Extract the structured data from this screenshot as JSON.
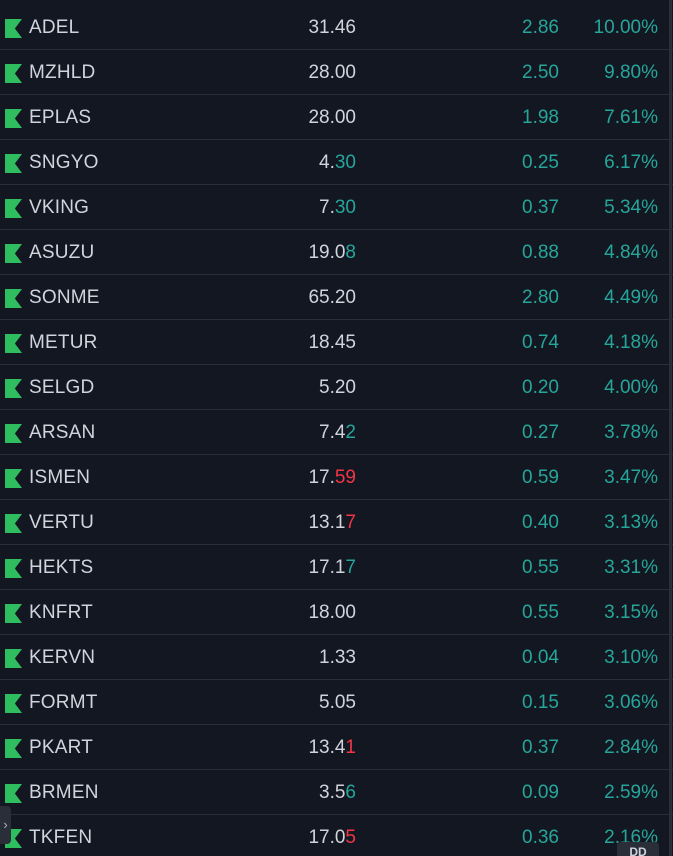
{
  "watchlist": {
    "rows": [
      {
        "symbol": "ADEL",
        "last_main": "31.46",
        "last_hl": "",
        "hl_dir": "",
        "change": "2.86",
        "change_pct": "10.00%"
      },
      {
        "symbol": "MZHLD",
        "last_main": "28.00",
        "last_hl": "",
        "hl_dir": "",
        "change": "2.50",
        "change_pct": "9.80%"
      },
      {
        "symbol": "EPLAS",
        "last_main": "28.00",
        "last_hl": "",
        "hl_dir": "",
        "change": "1.98",
        "change_pct": "7.61%"
      },
      {
        "symbol": "SNGYO",
        "last_main": "4.",
        "last_hl": "30",
        "hl_dir": "up",
        "change": "0.25",
        "change_pct": "6.17%"
      },
      {
        "symbol": "VKING",
        "last_main": "7.",
        "last_hl": "30",
        "hl_dir": "up",
        "change": "0.37",
        "change_pct": "5.34%"
      },
      {
        "symbol": "ASUZU",
        "last_main": "19.0",
        "last_hl": "8",
        "hl_dir": "up",
        "change": "0.88",
        "change_pct": "4.84%"
      },
      {
        "symbol": "SONME",
        "last_main": "65.20",
        "last_hl": "",
        "hl_dir": "",
        "change": "2.80",
        "change_pct": "4.49%"
      },
      {
        "symbol": "METUR",
        "last_main": "18.45",
        "last_hl": "",
        "hl_dir": "",
        "change": "0.74",
        "change_pct": "4.18%"
      },
      {
        "symbol": "SELGD",
        "last_main": "5.20",
        "last_hl": "",
        "hl_dir": "",
        "change": "0.20",
        "change_pct": "4.00%"
      },
      {
        "symbol": "ARSAN",
        "last_main": "7.4",
        "last_hl": "2",
        "hl_dir": "up",
        "change": "0.27",
        "change_pct": "3.78%"
      },
      {
        "symbol": "ISMEN",
        "last_main": "17.",
        "last_hl": "59",
        "hl_dir": "down",
        "change": "0.59",
        "change_pct": "3.47%"
      },
      {
        "symbol": "VERTU",
        "last_main": "13.1",
        "last_hl": "7",
        "hl_dir": "down",
        "change": "0.40",
        "change_pct": "3.13%"
      },
      {
        "symbol": "HEKTS",
        "last_main": "17.1",
        "last_hl": "7",
        "hl_dir": "up",
        "change": "0.55",
        "change_pct": "3.31%"
      },
      {
        "symbol": "KNFRT",
        "last_main": "18.00",
        "last_hl": "",
        "hl_dir": "",
        "change": "0.55",
        "change_pct": "3.15%"
      },
      {
        "symbol": "KERVN",
        "last_main": "1.33",
        "last_hl": "",
        "hl_dir": "",
        "change": "0.04",
        "change_pct": "3.10%"
      },
      {
        "symbol": "FORMT",
        "last_main": "5.05",
        "last_hl": "",
        "hl_dir": "",
        "change": "0.15",
        "change_pct": "3.06%"
      },
      {
        "symbol": "PKART",
        "last_main": "13.4",
        "last_hl": "1",
        "hl_dir": "down",
        "change": "0.37",
        "change_pct": "2.84%"
      },
      {
        "symbol": "BRMEN",
        "last_main": "3.5",
        "last_hl": "6",
        "hl_dir": "up",
        "change": "0.09",
        "change_pct": "2.59%"
      },
      {
        "symbol": "TKFEN",
        "last_main": "17.0",
        "last_hl": "5",
        "hl_dir": "down",
        "change": "0.36",
        "change_pct": "2.16%"
      }
    ]
  },
  "expand_handle": {
    "glyph": "›"
  },
  "corner_badge": {
    "label": "DD"
  },
  "colors": {
    "background": "#131722",
    "text": "#d1d4dc",
    "up": "#26a69a",
    "down": "#f23645",
    "flag": "#2ebd5f",
    "divider": "#2a2e39"
  }
}
